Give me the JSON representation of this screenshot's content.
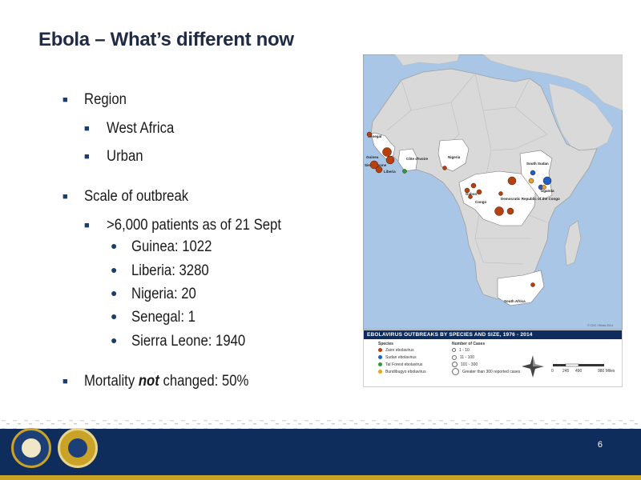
{
  "slide": {
    "title": "Ebola – What’s different now",
    "page_number": "6"
  },
  "bullets": [
    {
      "level": 1,
      "text": "Region"
    },
    {
      "level": 2,
      "text": "West Africa"
    },
    {
      "level": 2,
      "text": "Urban"
    },
    {
      "level": 1,
      "text": "Scale of outbreak"
    },
    {
      "level": 2,
      "text": ">6,000 patients as of 21 Sept"
    },
    {
      "level": 3,
      "text": "Guinea:  1022"
    },
    {
      "level": 3,
      "text": "Liberia:  3280"
    },
    {
      "level": 3,
      "text": "Nigeria:  20"
    },
    {
      "level": 3,
      "text": "Senegal:  1"
    },
    {
      "level": 3,
      "text": "Sierra Leone: 1940"
    },
    {
      "level": 1,
      "text_before": "Mortality ",
      "text_emph": "not",
      "text_after": " changed:  50%"
    }
  ],
  "map": {
    "labels": {
      "senegal": "Senegal",
      "guinea": "Guinea",
      "sierra_leone": "Sierra Leone",
      "liberia": "Liberia",
      "cote_divoire": "Côte d'Ivoire",
      "nigeria": "Nigeria",
      "south_sudan": "South Sudan",
      "uganda": "Uganda",
      "gabon": "Gabon",
      "congo": "Congo",
      "drc": "Democratic Republic of the Congo",
      "south_africa": "South Africa"
    },
    "credit": "© CDC / Ebola 2014",
    "colors": {
      "water": "#a9c6e6",
      "land": "#d9d9d9",
      "highlight": "#ffffff",
      "zaire": "#b8400f",
      "sudan": "#1f5fc6",
      "tai_forest": "#2f9a3a",
      "bundibugyo": "#f0a21f"
    }
  },
  "legend": {
    "title": "EBOLAVIRUS OUTBREAKS BY SPECIES AND SIZE, 1976 - 2014",
    "species_header": "Species",
    "cases_header": "Number of Cases",
    "species": [
      {
        "label": "Zaire ebolavirus",
        "color": "#b8400f"
      },
      {
        "label": "Sudan ebolavirus",
        "color": "#1f5fc6"
      },
      {
        "label": "Taï Forest ebolavirus",
        "color": "#2f9a3a"
      },
      {
        "label": "Bundibugyo ebolavirus",
        "color": "#f0a21f"
      }
    ],
    "sizes": [
      {
        "label": "1 - 10"
      },
      {
        "label": "11 - 100"
      },
      {
        "label": "101 - 300"
      },
      {
        "label": "Greater than 300 reported cases"
      }
    ],
    "scale": {
      "ticks": [
        "0",
        "245",
        "490",
        "980 Miles"
      ]
    }
  }
}
